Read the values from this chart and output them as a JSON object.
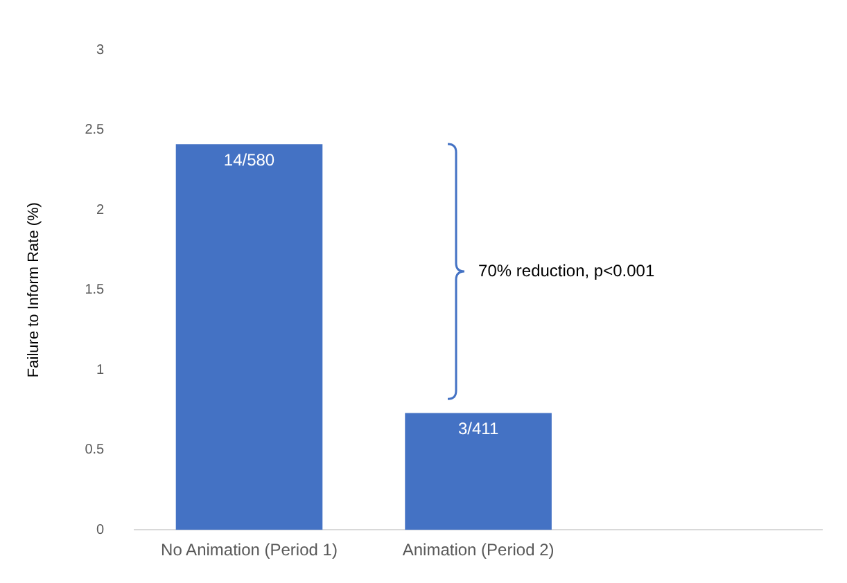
{
  "chart_data": {
    "type": "bar",
    "ylabel": "Failure to Inform Rate (%)",
    "categories": [
      "No Animation (Period 1)",
      "Animation (Period 2)",
      null
    ],
    "values": [
      2.41,
      0.73,
      null
    ],
    "value_labels": [
      "14/580",
      "3/411",
      null
    ],
    "color": "#4472c4",
    "ylim": [
      0,
      3
    ],
    "yticks": [
      0,
      0.5,
      1,
      1.5,
      2,
      2.5,
      3
    ],
    "grid": false,
    "legend": false,
    "annotations": [
      "70% reduction, p<0.001"
    ]
  }
}
